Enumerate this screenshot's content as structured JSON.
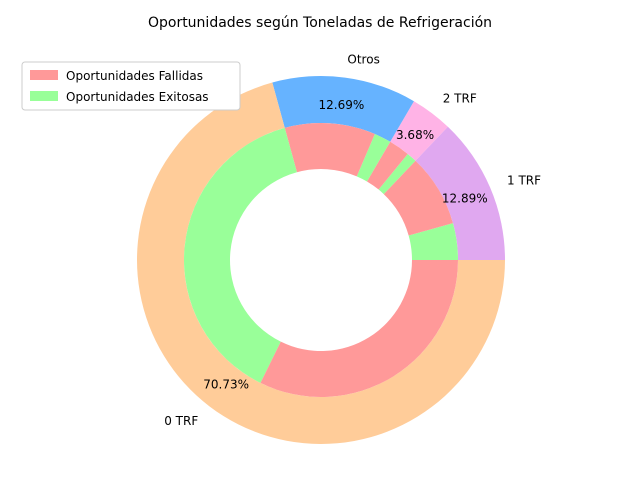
{
  "chart_data": {
    "type": "pie",
    "subtype": "nested-donut",
    "title": "Oportunidades según Toneladas de Refrigeración",
    "outer_ring": {
      "categories": [
        "1 TRF",
        "2 TRF",
        "Otros",
        "0 TRF"
      ],
      "values": [
        12.89,
        3.68,
        12.69,
        70.73
      ],
      "labels": [
        "12.89%",
        "3.68%",
        "12.69%",
        "70.73%"
      ],
      "colors": [
        "#e0a8f0",
        "#ffb3e6",
        "#66b3ff",
        "#ffcc99"
      ]
    },
    "inner_ring": {
      "segments": [
        {
          "category": "1 TRF",
          "status": "Oportunidades Exitosas",
          "value": 4.33
        },
        {
          "category": "1 TRF",
          "status": "Oportunidades Fallidas",
          "value": 8.56
        },
        {
          "category": "2 TRF",
          "status": "Oportunidades Exitosas",
          "value": 1.2
        },
        {
          "category": "2 TRF",
          "status": "Oportunidades Fallidas",
          "value": 2.48
        },
        {
          "category": "Otros",
          "status": "Oportunidades Exitosas",
          "value": 2.0
        },
        {
          "category": "Otros",
          "status": "Oportunidades Fallidas",
          "value": 10.69
        },
        {
          "category": "0 TRF",
          "status": "Oportunidades Exitosas",
          "value": 38.45
        },
        {
          "category": "0 TRF",
          "status": "Oportunidades Fallidas",
          "value": 32.28
        }
      ],
      "colors": {
        "Oportunidades Fallidas": "#ff9999",
        "Oportunidades Exitosas": "#99ff99"
      }
    },
    "legend": {
      "position": "top-left",
      "entries": [
        {
          "name": "Oportunidades Fallidas",
          "color": "#ff9999"
        },
        {
          "name": "Oportunidades Exitosas",
          "color": "#99ff99"
        }
      ]
    },
    "start_angle_deg": 0,
    "direction": "counterclockwise"
  }
}
